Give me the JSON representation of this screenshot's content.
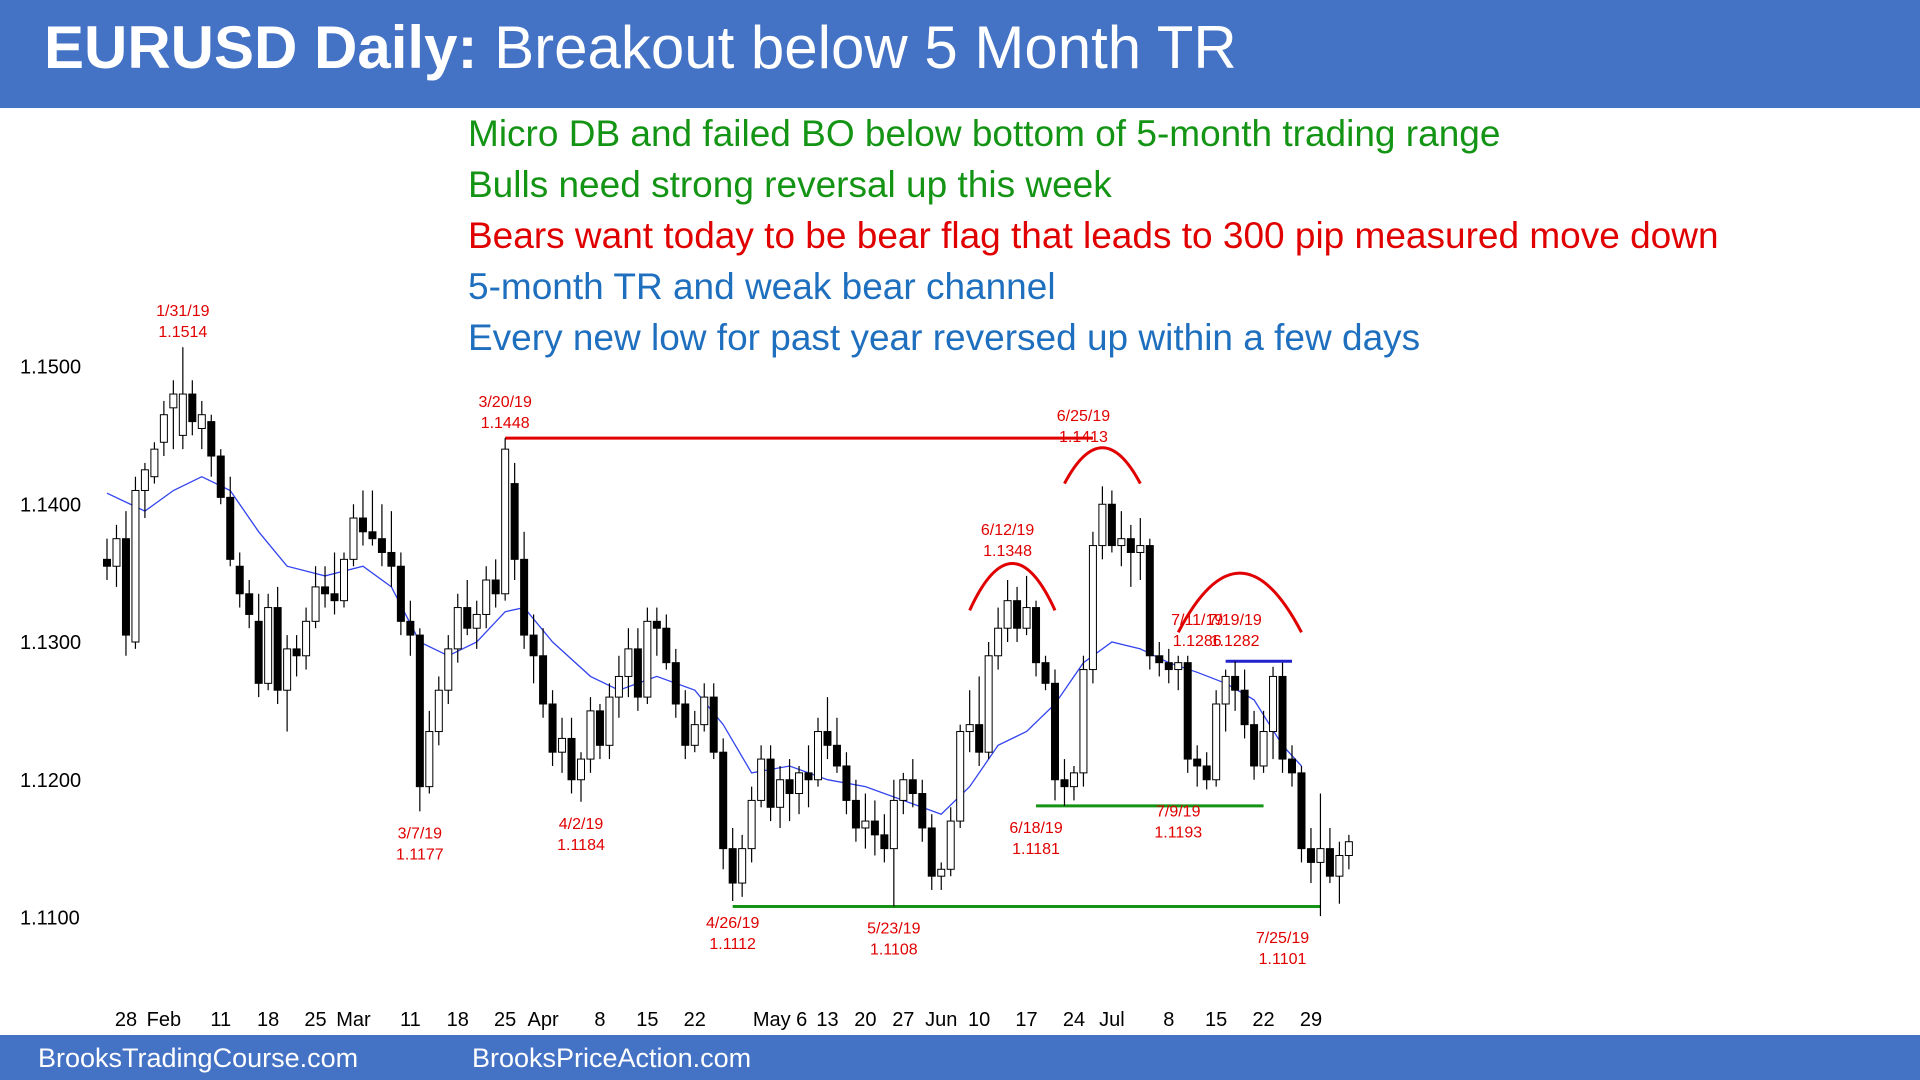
{
  "title": {
    "bold": "EURUSD Daily:",
    "rest": " Breakout below 5 Month TR"
  },
  "footer": {
    "left": "BrooksTradingCourse.com",
    "right": "BrooksPriceAction.com"
  },
  "notes": [
    {
      "text": "Micro DB and failed BO below bottom of 5-month trading range",
      "color": "#149414"
    },
    {
      "text": "Bulls need strong reversal up this week",
      "color": "#149414"
    },
    {
      "text": "Bears want today to be bear flag that leads to 300 pip measured move down",
      "color": "#e00000"
    },
    {
      "text": "5-month TR and weak bear channel",
      "color": "#1f6fbf"
    },
    {
      "text": "Every new low for past year reversed up within a few days",
      "color": "#1f6fbf"
    }
  ],
  "colors": {
    "header": "#4472c4",
    "ma": "#3344ee",
    "annotation": "#e00000",
    "support": "#149414",
    "resistance_short": "#2222cc"
  },
  "chart_data": {
    "type": "candlestick",
    "title": "EURUSD Daily",
    "ylim": [
      1.106,
      1.153
    ],
    "yticks": [
      1.15,
      1.14,
      1.13,
      1.12,
      1.11
    ],
    "ytick_labels": [
      "1.1500",
      "1.1400",
      "1.1300",
      "1.1200",
      "1.1100"
    ],
    "xtick_labels": [
      {
        "label": "28",
        "bar": 2
      },
      {
        "label": "Feb",
        "bar": 6
      },
      {
        "label": "11",
        "bar": 12
      },
      {
        "label": "18",
        "bar": 17
      },
      {
        "label": "25",
        "bar": 22
      },
      {
        "label": "Mar",
        "bar": 26
      },
      {
        "label": "11",
        "bar": 32
      },
      {
        "label": "18",
        "bar": 37
      },
      {
        "label": "25",
        "bar": 42
      },
      {
        "label": "Apr",
        "bar": 46
      },
      {
        "label": "8",
        "bar": 52
      },
      {
        "label": "15",
        "bar": 57
      },
      {
        "label": "22",
        "bar": 62
      },
      {
        "label": "May 6",
        "bar": 71
      },
      {
        "label": "13",
        "bar": 76
      },
      {
        "label": "20",
        "bar": 80
      },
      {
        "label": "27",
        "bar": 84
      },
      {
        "label": "Jun",
        "bar": 88
      },
      {
        "label": "10",
        "bar": 92
      },
      {
        "label": "17",
        "bar": 97
      },
      {
        "label": "24",
        "bar": 102
      },
      {
        "label": "Jul",
        "bar": 106
      },
      {
        "label": "8",
        "bar": 112
      },
      {
        "label": "15",
        "bar": 117
      },
      {
        "label": "22",
        "bar": 122
      },
      {
        "label": "29",
        "bar": 127
      }
    ],
    "ohlc": [
      [
        1.136,
        1.1375,
        1.1345,
        1.1355
      ],
      [
        1.1355,
        1.1385,
        1.134,
        1.1375
      ],
      [
        1.1375,
        1.1395,
        1.129,
        1.1305
      ],
      [
        1.13,
        1.142,
        1.1295,
        1.141
      ],
      [
        1.141,
        1.143,
        1.139,
        1.1425
      ],
      [
        1.142,
        1.1445,
        1.1415,
        1.144
      ],
      [
        1.1445,
        1.1475,
        1.1435,
        1.1465
      ],
      [
        1.147,
        1.149,
        1.144,
        1.148
      ],
      [
        1.145,
        1.1514,
        1.144,
        1.148
      ],
      [
        1.148,
        1.149,
        1.145,
        1.146
      ],
      [
        1.1455,
        1.1475,
        1.144,
        1.1465
      ],
      [
        1.146,
        1.1465,
        1.142,
        1.1435
      ],
      [
        1.1435,
        1.144,
        1.14,
        1.1405
      ],
      [
        1.1405,
        1.142,
        1.1355,
        1.136
      ],
      [
        1.1355,
        1.1365,
        1.1325,
        1.1335
      ],
      [
        1.1335,
        1.1345,
        1.131,
        1.132
      ],
      [
        1.1315,
        1.1335,
        1.126,
        1.127
      ],
      [
        1.127,
        1.1335,
        1.1265,
        1.1325
      ],
      [
        1.1325,
        1.134,
        1.1255,
        1.1265
      ],
      [
        1.1265,
        1.1305,
        1.1235,
        1.1295
      ],
      [
        1.1295,
        1.1305,
        1.1275,
        1.129
      ],
      [
        1.129,
        1.1325,
        1.128,
        1.1315
      ],
      [
        1.1315,
        1.1355,
        1.131,
        1.134
      ],
      [
        1.134,
        1.1355,
        1.1325,
        1.1335
      ],
      [
        1.1335,
        1.1365,
        1.132,
        1.133
      ],
      [
        1.133,
        1.1365,
        1.1325,
        1.136
      ],
      [
        1.136,
        1.14,
        1.1355,
        1.139
      ],
      [
        1.139,
        1.141,
        1.137,
        1.138
      ],
      [
        1.138,
        1.141,
        1.137,
        1.1375
      ],
      [
        1.1375,
        1.14,
        1.1355,
        1.1365
      ],
      [
        1.1365,
        1.1395,
        1.134,
        1.1355
      ],
      [
        1.1355,
        1.1365,
        1.1305,
        1.1315
      ],
      [
        1.1315,
        1.133,
        1.129,
        1.1305
      ],
      [
        1.1305,
        1.131,
        1.1177,
        1.1195
      ],
      [
        1.1195,
        1.125,
        1.119,
        1.1235
      ],
      [
        1.1235,
        1.1275,
        1.1225,
        1.1265
      ],
      [
        1.1265,
        1.1305,
        1.1255,
        1.1295
      ],
      [
        1.1295,
        1.1335,
        1.1285,
        1.1325
      ],
      [
        1.1325,
        1.1345,
        1.1305,
        1.131
      ],
      [
        1.131,
        1.133,
        1.1295,
        1.132
      ],
      [
        1.132,
        1.1355,
        1.131,
        1.1345
      ],
      [
        1.1345,
        1.136,
        1.1325,
        1.1335
      ],
      [
        1.1335,
        1.1448,
        1.133,
        1.144
      ],
      [
        1.1415,
        1.143,
        1.1345,
        1.136
      ],
      [
        1.136,
        1.138,
        1.1295,
        1.1305
      ],
      [
        1.1305,
        1.132,
        1.127,
        1.129
      ],
      [
        1.129,
        1.131,
        1.1245,
        1.1255
      ],
      [
        1.1255,
        1.1265,
        1.121,
        1.122
      ],
      [
        1.122,
        1.1245,
        1.1205,
        1.123
      ],
      [
        1.123,
        1.1245,
        1.119,
        1.12
      ],
      [
        1.12,
        1.122,
        1.1184,
        1.1215
      ],
      [
        1.1215,
        1.126,
        1.1205,
        1.125
      ],
      [
        1.125,
        1.1255,
        1.1215,
        1.1225
      ],
      [
        1.1225,
        1.127,
        1.1215,
        1.126
      ],
      [
        1.126,
        1.129,
        1.1245,
        1.1275
      ],
      [
        1.1275,
        1.131,
        1.126,
        1.1295
      ],
      [
        1.1295,
        1.131,
        1.125,
        1.126
      ],
      [
        1.126,
        1.1325,
        1.1255,
        1.1315
      ],
      [
        1.1315,
        1.1325,
        1.129,
        1.131
      ],
      [
        1.131,
        1.132,
        1.128,
        1.1285
      ],
      [
        1.1285,
        1.1295,
        1.1245,
        1.1255
      ],
      [
        1.1255,
        1.1265,
        1.1215,
        1.1225
      ],
      [
        1.1225,
        1.125,
        1.122,
        1.124
      ],
      [
        1.124,
        1.127,
        1.1235,
        1.126
      ],
      [
        1.126,
        1.127,
        1.1215,
        1.122
      ],
      [
        1.122,
        1.123,
        1.1135,
        1.115
      ],
      [
        1.115,
        1.1165,
        1.1112,
        1.1125
      ],
      [
        1.1125,
        1.116,
        1.1115,
        1.115
      ],
      [
        1.115,
        1.1195,
        1.114,
        1.1185
      ],
      [
        1.1185,
        1.1225,
        1.118,
        1.1215
      ],
      [
        1.1215,
        1.1225,
        1.117,
        1.118
      ],
      [
        1.118,
        1.121,
        1.1165,
        1.12
      ],
      [
        1.12,
        1.1215,
        1.117,
        1.119
      ],
      [
        1.119,
        1.121,
        1.1175,
        1.1205
      ],
      [
        1.1205,
        1.1225,
        1.118,
        1.12
      ],
      [
        1.12,
        1.1245,
        1.1195,
        1.1235
      ],
      [
        1.1235,
        1.126,
        1.1215,
        1.1225
      ],
      [
        1.1225,
        1.1245,
        1.1205,
        1.121
      ],
      [
        1.121,
        1.122,
        1.1175,
        1.1185
      ],
      [
        1.1185,
        1.12,
        1.1155,
        1.1165
      ],
      [
        1.1165,
        1.119,
        1.115,
        1.117
      ],
      [
        1.117,
        1.1185,
        1.1145,
        1.116
      ],
      [
        1.116,
        1.1175,
        1.114,
        1.115
      ],
      [
        1.115,
        1.12,
        1.1108,
        1.1185
      ],
      [
        1.1185,
        1.1205,
        1.1175,
        1.12
      ],
      [
        1.12,
        1.1215,
        1.118,
        1.119
      ],
      [
        1.119,
        1.12,
        1.1155,
        1.1165
      ],
      [
        1.1165,
        1.1175,
        1.112,
        1.113
      ],
      [
        1.113,
        1.114,
        1.112,
        1.1135
      ],
      [
        1.1135,
        1.118,
        1.113,
        1.117
      ],
      [
        1.117,
        1.124,
        1.1165,
        1.1235
      ],
      [
        1.1235,
        1.1265,
        1.122,
        1.124
      ],
      [
        1.124,
        1.1275,
        1.121,
        1.122
      ],
      [
        1.122,
        1.13,
        1.1215,
        1.129
      ],
      [
        1.129,
        1.1325,
        1.128,
        1.131
      ],
      [
        1.131,
        1.1345,
        1.13,
        1.133
      ],
      [
        1.133,
        1.134,
        1.13,
        1.131
      ],
      [
        1.131,
        1.1348,
        1.1305,
        1.1325
      ],
      [
        1.1325,
        1.133,
        1.1275,
        1.1285
      ],
      [
        1.1285,
        1.129,
        1.1265,
        1.127
      ],
      [
        1.127,
        1.128,
        1.1185,
        1.12
      ],
      [
        1.12,
        1.1215,
        1.1181,
        1.1195
      ],
      [
        1.1195,
        1.121,
        1.1185,
        1.1205
      ],
      [
        1.1205,
        1.129,
        1.1195,
        1.128
      ],
      [
        1.128,
        1.138,
        1.127,
        1.137
      ],
      [
        1.137,
        1.1413,
        1.136,
        1.14
      ],
      [
        1.14,
        1.141,
        1.1365,
        1.137
      ],
      [
        1.137,
        1.1395,
        1.1355,
        1.1375
      ],
      [
        1.1375,
        1.1385,
        1.134,
        1.1365
      ],
      [
        1.1365,
        1.139,
        1.1345,
        1.137
      ],
      [
        1.137,
        1.1375,
        1.128,
        1.129
      ],
      [
        1.129,
        1.13,
        1.1275,
        1.1285
      ],
      [
        1.1285,
        1.1295,
        1.127,
        1.128
      ],
      [
        1.128,
        1.129,
        1.1265,
        1.1285
      ],
      [
        1.1285,
        1.129,
        1.1205,
        1.1215
      ],
      [
        1.1215,
        1.1225,
        1.1195,
        1.121
      ],
      [
        1.121,
        1.122,
        1.1193,
        1.12
      ],
      [
        1.12,
        1.1265,
        1.1195,
        1.1255
      ],
      [
        1.1255,
        1.128,
        1.1235,
        1.1275
      ],
      [
        1.1275,
        1.1286,
        1.125,
        1.1265
      ],
      [
        1.1265,
        1.128,
        1.123,
        1.124
      ],
      [
        1.124,
        1.125,
        1.12,
        1.121
      ],
      [
        1.121,
        1.125,
        1.1205,
        1.1235
      ],
      [
        1.1235,
        1.1282,
        1.1215,
        1.1275
      ],
      [
        1.1275,
        1.1285,
        1.1205,
        1.1215
      ],
      [
        1.1215,
        1.1225,
        1.1195,
        1.1205
      ],
      [
        1.1205,
        1.121,
        1.114,
        1.115
      ],
      [
        1.115,
        1.1165,
        1.1125,
        1.114
      ],
      [
        1.114,
        1.119,
        1.1101,
        1.115
      ],
      [
        1.115,
        1.1165,
        1.1125,
        1.113
      ],
      [
        1.113,
        1.1155,
        1.111,
        1.1145
      ],
      [
        1.1145,
        1.116,
        1.1135,
        1.1155
      ]
    ],
    "moving_average": [
      [
        0,
        1.1408
      ],
      [
        4,
        1.1395
      ],
      [
        7,
        1.141
      ],
      [
        10,
        1.142
      ],
      [
        13,
        1.141
      ],
      [
        16,
        1.138
      ],
      [
        19,
        1.1355
      ],
      [
        23,
        1.1348
      ],
      [
        27,
        1.1355
      ],
      [
        30,
        1.134
      ],
      [
        33,
        1.13
      ],
      [
        36,
        1.129
      ],
      [
        39,
        1.13
      ],
      [
        42,
        1.1322
      ],
      [
        44,
        1.1325
      ],
      [
        47,
        1.13
      ],
      [
        51,
        1.1275
      ],
      [
        54,
        1.1265
      ],
      [
        58,
        1.1275
      ],
      [
        62,
        1.1265
      ],
      [
        65,
        1.124
      ],
      [
        68,
        1.1205
      ],
      [
        72,
        1.121
      ],
      [
        76,
        1.12
      ],
      [
        80,
        1.1195
      ],
      [
        84,
        1.1185
      ],
      [
        88,
        1.1175
      ],
      [
        91,
        1.1195
      ],
      [
        94,
        1.1225
      ],
      [
        97,
        1.1235
      ],
      [
        100,
        1.1255
      ],
      [
        103,
        1.1285
      ],
      [
        106,
        1.13
      ],
      [
        109,
        1.1295
      ],
      [
        112,
        1.1285
      ],
      [
        115,
        1.1278
      ],
      [
        118,
        1.127
      ],
      [
        121,
        1.1258
      ],
      [
        124,
        1.1225
      ],
      [
        126,
        1.121
      ]
    ],
    "lines": [
      {
        "color": "red",
        "y": 1.1448,
        "x1": 42,
        "x2": 104
      },
      {
        "color": "green",
        "y": 1.1108,
        "x1": 66,
        "x2": 128
      },
      {
        "color": "green",
        "y": 1.1181,
        "x1": 98,
        "x2": 122
      },
      {
        "color": "blue",
        "y": 1.1286,
        "x1": 118,
        "x2": 125
      }
    ],
    "arcs": [
      {
        "bar_start": 91,
        "bar_end": 100,
        "peak_y": 1.1357,
        "base_y": 1.1323
      },
      {
        "bar_start": 101,
        "bar_end": 109,
        "peak_y": 1.1441,
        "base_y": 1.1415
      },
      {
        "bar_start": 113,
        "bar_end": 126,
        "peak_y": 1.135,
        "base_y": 1.1307
      }
    ],
    "annotations": [
      {
        "date": "1/31/19",
        "price": "1.1514",
        "bar": 8,
        "y": 1.1514,
        "pos": "above"
      },
      {
        "date": "3/20/19",
        "price": "1.1448",
        "bar": 42,
        "y": 1.1448,
        "pos": "above"
      },
      {
        "date": "3/7/19",
        "price": "1.1177",
        "bar": 33,
        "y": 1.1177,
        "pos": "below"
      },
      {
        "date": "4/2/19",
        "price": "1.1184",
        "bar": 50,
        "y": 1.1184,
        "pos": "below"
      },
      {
        "date": "4/26/19",
        "price": "1.1112",
        "bar": 66,
        "y": 1.1112,
        "pos": "below"
      },
      {
        "date": "5/23/19",
        "price": "1.1108",
        "bar": 83,
        "y": 1.1108,
        "pos": "below"
      },
      {
        "date": "6/12/19",
        "price": "1.1348",
        "bar": 95,
        "y": 1.1355,
        "pos": "above"
      },
      {
        "date": "6/25/19",
        "price": "1.1413",
        "bar": 103,
        "y": 1.1438,
        "pos": "above"
      },
      {
        "date": "6/18/19",
        "price": "1.1181",
        "bar": 98,
        "y": 1.1181,
        "pos": "below"
      },
      {
        "date": "7/9/19",
        "price": "1.1193",
        "bar": 113,
        "y": 1.1193,
        "pos": "below"
      },
      {
        "date": "7/11/19",
        "price": "1.1286",
        "bar": 115,
        "y": 1.129,
        "pos": "above"
      },
      {
        "date": "7/19/19",
        "price": "1.1282",
        "bar": 119,
        "y": 1.129,
        "pos": "above"
      },
      {
        "date": "7/25/19",
        "price": "1.1101",
        "bar": 124,
        "y": 1.1101,
        "pos": "below"
      }
    ]
  }
}
